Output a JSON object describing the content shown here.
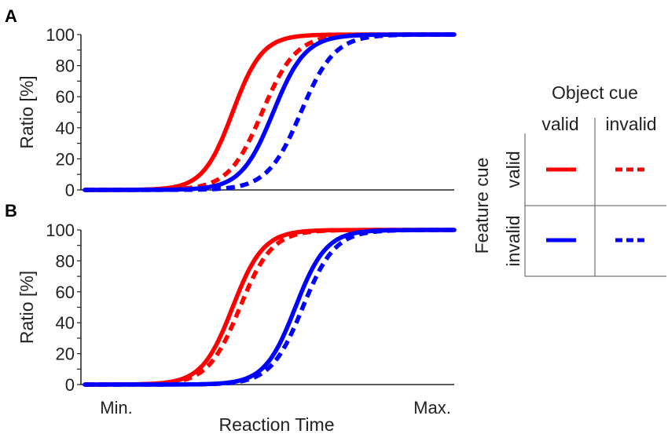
{
  "chart_data": [
    {
      "type": "line",
      "panel_label": "A",
      "ylabel": "Ratio [%]",
      "ylim": [
        0,
        100
      ],
      "yticks": [
        "0",
        "20",
        "40",
        "60",
        "80",
        "100"
      ],
      "x_scale": "normalized reaction time (Min. = 0, Max. = 1)",
      "series": [
        {
          "color": "#ff0000",
          "style": "solid",
          "midpoint": 0.4,
          "steepness": 25
        },
        {
          "color": "#ff0000",
          "style": "dashed",
          "midpoint": 0.48,
          "steepness": 22
        },
        {
          "color": "#0000ff",
          "style": "solid",
          "midpoint": 0.51,
          "steepness": 23
        },
        {
          "color": "#0000ff",
          "style": "dashed",
          "midpoint": 0.585,
          "steepness": 22
        }
      ]
    },
    {
      "type": "line",
      "panel_label": "B",
      "ylabel": "Ratio [%]",
      "ylim": [
        0,
        100
      ],
      "yticks": [
        "0",
        "20",
        "40",
        "60",
        "80",
        "100"
      ],
      "xlabel": "Reaction Time",
      "xtick_min": "Min.",
      "xtick_max": "Max.",
      "series": [
        {
          "color": "#ff0000",
          "style": "solid",
          "midpoint": 0.4,
          "steepness": 24
        },
        {
          "color": "#ff0000",
          "style": "dashed",
          "midpoint": 0.42,
          "steepness": 23
        },
        {
          "color": "#0000ff",
          "style": "solid",
          "midpoint": 0.57,
          "steepness": 24
        },
        {
          "color": "#0000ff",
          "style": "dashed",
          "midpoint": 0.59,
          "steepness": 23
        }
      ]
    }
  ],
  "legend": {
    "column_title": "Object cue",
    "column_labels": [
      "valid",
      "invalid"
    ],
    "row_title": "Feature cue",
    "row_labels": [
      "valid",
      "invalid"
    ],
    "colors": {
      "valid_feature": "#ff0000",
      "invalid_feature": "#0000ff"
    }
  }
}
